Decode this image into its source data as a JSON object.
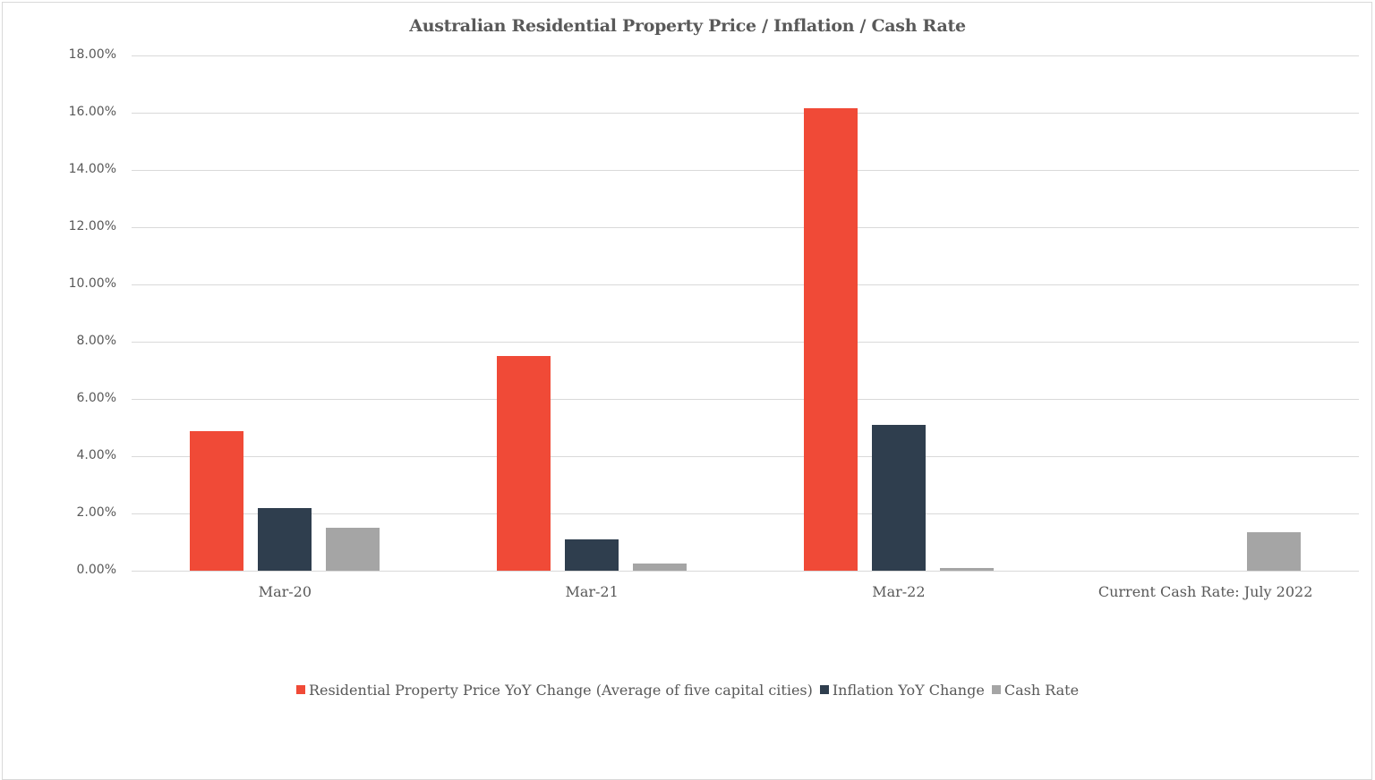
{
  "chart_data": {
    "type": "bar",
    "title": "Australian Residential Property Price / Inflation / Cash Rate",
    "xlabel": "",
    "ylabel": "",
    "ylim": [
      0,
      18
    ],
    "y_ticks": [
      "0.00%",
      "2.00%",
      "4.00%",
      "6.00%",
      "8.00%",
      "10.00%",
      "12.00%",
      "14.00%",
      "16.00%",
      "18.00%"
    ],
    "grid": true,
    "legend_position": "bottom",
    "categories": [
      "Mar-20",
      "Mar-21",
      "Mar-22",
      "Current Cash Rate: July 2022"
    ],
    "series": [
      {
        "name": "Residential Property Price YoY Change (Average of five capital cities)",
        "color": "#F04A37",
        "values": [
          4.88,
          7.5,
          16.16,
          null
        ]
      },
      {
        "name": "Inflation YoY Change",
        "color": "#2F3E4E",
        "values": [
          2.2,
          1.1,
          5.1,
          null
        ]
      },
      {
        "name": "Cash Rate",
        "color": "#A5A5A5",
        "values": [
          1.5,
          0.25,
          0.1,
          1.35
        ]
      }
    ]
  }
}
